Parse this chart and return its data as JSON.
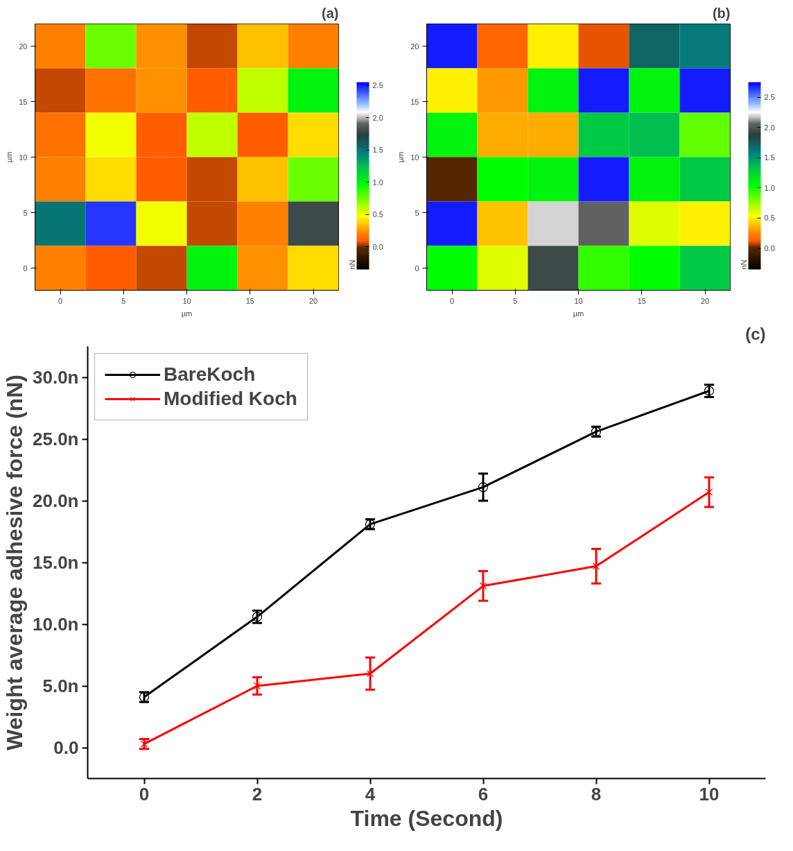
{
  "chart_data": [
    {
      "type": "heatmap",
      "title": "(a)",
      "xlabel": "µm",
      "ylabel": "µm",
      "clabel": "nN",
      "x": [
        0,
        4,
        8,
        12,
        16,
        20
      ],
      "y": [
        20,
        16,
        12,
        8,
        4,
        0
      ],
      "xlim": [
        -2,
        22
      ],
      "ylim": [
        -2,
        22
      ],
      "xticks": [
        0,
        5,
        10,
        15,
        20
      ],
      "yticks": [
        0,
        5,
        10,
        15,
        20
      ],
      "cells": [
        [
          0.2,
          0.75,
          0.25,
          0.05,
          0.35,
          0.2
        ],
        [
          0.05,
          0.15,
          0.25,
          0.1,
          0.6,
          1.0
        ],
        [
          0.15,
          0.5,
          0.1,
          0.6,
          0.1,
          0.4
        ],
        [
          0.2,
          0.4,
          0.1,
          0.05,
          0.35,
          0.75
        ],
        [
          1.5,
          2.45,
          0.5,
          0.05,
          0.2,
          1.8
        ],
        [
          0.2,
          0.1,
          0.05,
          1.0,
          0.25,
          0.4
        ]
      ],
      "clim": [
        -0.35,
        2.55
      ],
      "cticks": [
        {
          "value": 0,
          "label": "0.0"
        },
        {
          "value": 0.5,
          "label": "0.5"
        },
        {
          "value": 1,
          "label": "1.0"
        },
        {
          "value": 1.5,
          "label": "1.5"
        },
        {
          "value": 2,
          "label": "2.0"
        },
        {
          "value": 2.5,
          "label": "2.5"
        }
      ]
    },
    {
      "type": "heatmap",
      "title": "(b)",
      "xlabel": "µm",
      "ylabel": "µm",
      "clabel": "nN",
      "x": [
        0,
        4,
        8,
        12,
        16,
        20
      ],
      "y": [
        20,
        16,
        12,
        8,
        4,
        0
      ],
      "xlim": [
        -2,
        22
      ],
      "ylim": [
        -2,
        22
      ],
      "xticks": [
        0,
        5,
        10,
        15,
        20
      ],
      "yticks": [
        0,
        5,
        10,
        15,
        20
      ],
      "cells": [
        [
          2.7,
          0.15,
          0.5,
          0.1,
          1.7,
          1.6
        ],
        [
          0.5,
          0.3,
          1.1,
          2.7,
          1.1,
          2.7
        ],
        [
          1.1,
          0.35,
          0.35,
          1.3,
          1.35,
          0.85
        ],
        [
          0.0,
          1.05,
          1.1,
          2.7,
          1.1,
          1.3
        ],
        [
          2.7,
          0.4,
          2.2,
          2.05,
          0.6,
          0.5
        ],
        [
          1.05,
          0.6,
          1.95,
          0.95,
          1.05,
          1.3
        ]
      ],
      "clim": [
        -0.35,
        2.75
      ],
      "cticks": [
        {
          "value": 0,
          "label": "0.0"
        },
        {
          "value": 0.5,
          "label": "0.5"
        },
        {
          "value": 1,
          "label": "1.0"
        },
        {
          "value": 1.5,
          "label": "1.5"
        },
        {
          "value": 2,
          "label": "2.0"
        },
        {
          "value": 2.5,
          "label": "2.5"
        }
      ]
    },
    {
      "type": "line",
      "title": "(c)",
      "xlabel": "Time (Second)",
      "ylabel": "Weight average adhesive force (nN)",
      "x": [
        0,
        2,
        4,
        6,
        8,
        10
      ],
      "xlim": [
        -1,
        11
      ],
      "xticks": [
        0,
        2,
        4,
        6,
        8,
        10
      ],
      "ylim": [
        -2.5,
        32.5
      ],
      "yticks": [
        {
          "value": 0,
          "label": "0.0"
        },
        {
          "value": 5,
          "label": "5.0n"
        },
        {
          "value": 10,
          "label": "10.0n"
        },
        {
          "value": 15,
          "label": "15.0n"
        },
        {
          "value": 20,
          "label": "20.0n"
        },
        {
          "value": 25,
          "label": "25.0n"
        },
        {
          "value": 30,
          "label": "30.0n"
        }
      ],
      "grid": false,
      "legend": "top left",
      "line_style": "solid",
      "series": [
        {
          "name": "BareKoch",
          "color": "#000000",
          "marker": "circle",
          "values": [
            4.1,
            10.6,
            18.1,
            21.1,
            25.6,
            28.9
          ],
          "errors": [
            0.4,
            0.5,
            0.4,
            1.1,
            0.4,
            0.5
          ]
        },
        {
          "name": "Modified Koch",
          "color": "#ff0000",
          "marker": "cross",
          "values": [
            0.3,
            5.0,
            6.0,
            13.1,
            14.7,
            20.7
          ],
          "errors": [
            0.4,
            0.7,
            1.3,
            1.2,
            1.4,
            1.2
          ]
        }
      ]
    }
  ]
}
